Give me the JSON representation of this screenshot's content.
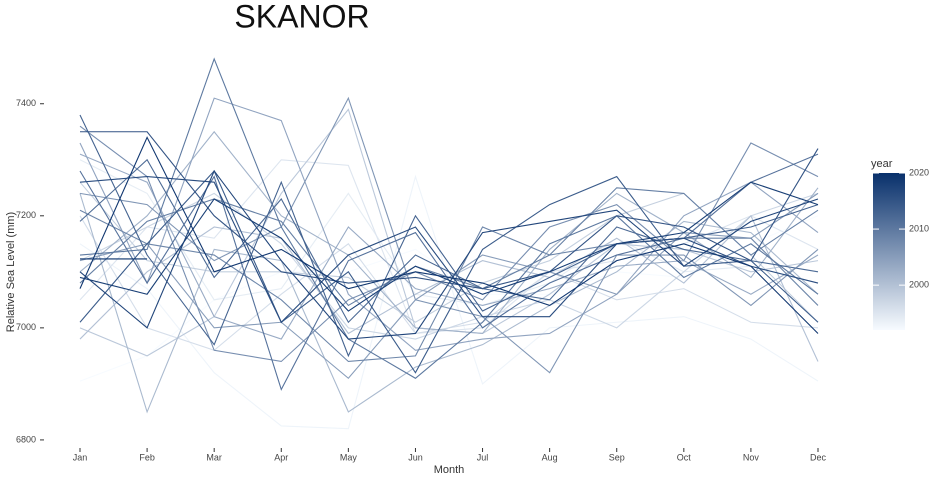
{
  "chart_data": {
    "type": "line",
    "title": "SKANOR",
    "x_label": "Month",
    "y_label": "Relative Sea Level (mm)",
    "categories": [
      "Jan",
      "Feb",
      "Mar",
      "Apr",
      "May",
      "Jun",
      "Jul",
      "Aug",
      "Sep",
      "Oct",
      "Nov",
      "Dec"
    ],
    "ylim": [
      6782,
      7487
    ],
    "yticks": [
      6800,
      7000,
      7200,
      7400
    ],
    "colorbar": {
      "title": "year",
      "lim": [
        1992,
        2020
      ],
      "ticks": [
        2000,
        2010,
        2020
      ],
      "colors": [
        "#f7fbff",
        "#08306b"
      ]
    },
    "series": [
      {
        "year": 1992,
        "values": [
          6905,
          6950,
          7050,
          7100,
          7100,
          7140,
          7060,
          7060,
          7100,
          7090,
          7150,
          7200
        ]
      },
      {
        "year": 1993,
        "values": [
          7150,
          7070,
          6920,
          6825,
          6820,
          7270,
          6900,
          7000,
          7010,
          7020,
          6980,
          6905
        ]
      },
      {
        "year": 1994,
        "values": [
          7300,
          7240,
          7050,
          7070,
          7240,
          7060,
          7040,
          7080,
          7160,
          7100,
          7110,
          7080
        ]
      },
      {
        "year": 1995,
        "values": [
          7050,
          7180,
          7160,
          7300,
          7290,
          6990,
          7000,
          7100,
          7120,
          7150,
          7200,
          7140
        ]
      },
      {
        "year": 1996,
        "values": [
          7200,
          7000,
          6960,
          7060,
          7150,
          6990,
          7010,
          7100,
          7050,
          7070,
          7010,
          7000
        ]
      },
      {
        "year": 1997,
        "values": [
          7120,
          7180,
          7240,
          7150,
          7000,
          6980,
          7020,
          7050,
          7000,
          7100,
          7200,
          7240
        ]
      },
      {
        "year": 1998,
        "values": [
          7260,
          7120,
          7100,
          7100,
          7090,
          7010,
          7080,
          7120,
          7200,
          7240,
          7130,
          7010
        ]
      },
      {
        "year": 1999,
        "values": [
          7000,
          6950,
          7020,
          7240,
          7390,
          7000,
          6990,
          7060,
          7150,
          7140,
          7100,
          7120
        ]
      },
      {
        "year": 2000,
        "values": [
          6980,
          7100,
          7180,
          7160,
          6990,
          7060,
          7120,
          7090,
          7160,
          7080,
          7200,
          6940
        ]
      },
      {
        "year": 2001,
        "values": [
          7240,
          6850,
          7140,
          7120,
          6850,
          6930,
          6970,
          7040,
          7100,
          7190,
          7170,
          7060
        ]
      },
      {
        "year": 2002,
        "values": [
          7100,
          7200,
          7350,
          7200,
          7130,
          7000,
          6990,
          7140,
          7240,
          7170,
          7090,
          7250
        ]
      },
      {
        "year": 2003,
        "values": [
          7310,
          7260,
          7020,
          6980,
          7180,
          7070,
          7040,
          7070,
          7110,
          7120,
          7060,
          7130
        ]
      },
      {
        "year": 2004,
        "values": [
          7330,
          7080,
          7410,
          7370,
          7060,
          6960,
          6980,
          6990,
          7060,
          7200,
          7260,
          7170
        ]
      },
      {
        "year": 2005,
        "values": [
          7120,
          7150,
          7000,
          7010,
          6910,
          7050,
          7130,
          7100,
          7060,
          7170,
          7160,
          7240
        ]
      },
      {
        "year": 2006,
        "values": [
          7240,
          7220,
          7120,
          7180,
          7410,
          7050,
          7020,
          6920,
          7130,
          7130,
          7040,
          7140
        ]
      },
      {
        "year": 2007,
        "values": [
          7360,
          7270,
          6960,
          6940,
          7050,
          7100,
          7050,
          7180,
          7220,
          7120,
          7330,
          7270
        ]
      },
      {
        "year": 2008,
        "values": [
          7210,
          7150,
          7130,
          7050,
          6940,
          6950,
          7180,
          7130,
          7150,
          7160,
          7160,
          7040
        ]
      },
      {
        "year": 2009,
        "values": [
          7080,
          7190,
          7230,
          7190,
          7040,
          7110,
          7070,
          7130,
          7250,
          7240,
          7130,
          7210
        ]
      },
      {
        "year": 2010,
        "values": [
          7130,
          7140,
          7480,
          7180,
          6980,
          6910,
          7010,
          7150,
          7200,
          7090,
          7150,
          7060
        ]
      },
      {
        "year": 2011,
        "values": [
          7280,
          7080,
          7270,
          6890,
          7120,
          7170,
          7000,
          7080,
          7130,
          7160,
          7260,
          7310
        ]
      },
      {
        "year": 2012,
        "values": [
          7190,
          7300,
          7090,
          7230,
          7010,
          7130,
          7070,
          7050,
          7180,
          7140,
          7120,
          7100
        ]
      },
      {
        "year": 2013,
        "values": [
          7380,
          7130,
          6970,
          7260,
          6950,
          7200,
          7030,
          7090,
          7150,
          7160,
          7180,
          7220
        ]
      },
      {
        "year": 2014,
        "values": [
          7010,
          7150,
          7280,
          7010,
          7100,
          6920,
          7140,
          7220,
          7270,
          7110,
          7120,
          7010
        ]
      },
      {
        "year": 2015,
        "values": [
          7350,
          7350,
          7200,
          7100,
          7080,
          7090,
          7070,
          7100,
          7200,
          7180,
          7120,
          7320
        ]
      },
      {
        "year": 2016,
        "values": [
          7260,
          7270,
          7260,
          7010,
          7130,
          7180,
          7020,
          7020,
          7150,
          7160,
          7110,
          7080
        ]
      },
      {
        "year": 2017,
        "values": [
          7100,
          7000,
          7280,
          7120,
          6980,
          6990,
          7170,
          7190,
          7210,
          7110,
          7190,
          7230
        ]
      },
      {
        "year": 2018,
        "values": [
          7090,
          7060,
          7230,
          7160,
          7030,
          7110,
          7060,
          7100,
          7150,
          7170,
          7260,
          7220
        ]
      },
      {
        "year": 2019,
        "values": [
          7070,
          7340,
          7100,
          7140,
          7070,
          7100,
          7080,
          7040,
          7120,
          7150,
          7110,
          6990
        ]
      },
      {
        "year": 2020,
        "values": [
          7123,
          7123,
          null,
          null,
          null,
          null,
          null,
          null,
          null,
          null,
          null,
          null
        ]
      }
    ]
  }
}
